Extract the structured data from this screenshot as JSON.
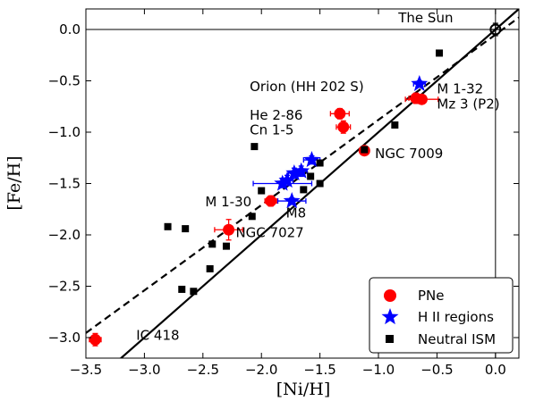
{
  "chart_data": {
    "type": "scatter",
    "xlabel": "[Ni/H]",
    "ylabel": "[Fe/H]",
    "xlim": [
      -3.5,
      0.2
    ],
    "ylim": [
      -3.2,
      0.2
    ],
    "xticks": [
      -3.5,
      -3.0,
      -2.5,
      -2.0,
      -1.5,
      -1.0,
      -0.5,
      0.0
    ],
    "yticks": [
      -3.0,
      -2.5,
      -2.0,
      -1.5,
      -1.0,
      -0.5,
      0.0
    ],
    "xtick_labels": [
      "−3.5",
      "−3.0",
      "−2.5",
      "−2.0",
      "−1.5",
      "−1.0",
      "−0.5",
      "0.0"
    ],
    "ytick_labels": [
      "−3.0",
      "−2.5",
      "−2.0",
      "−1.5",
      "−1.0",
      "−0.5",
      "0.0"
    ],
    "reference_lines": [
      {
        "style": "solid",
        "slope": 1.0,
        "intercept": 0.0
      },
      {
        "style": "dashed",
        "slope": 0.83,
        "intercept": -0.05
      },
      {
        "style": "solid-thin",
        "orientation": "horizontal",
        "value": 0.0
      },
      {
        "style": "solid-thin",
        "orientation": "vertical",
        "value": 0.0
      }
    ],
    "series": [
      {
        "name": "PNe",
        "marker": "circle",
        "color": "#ff0000",
        "points": [
          {
            "x": -3.42,
            "y": -3.02,
            "xerr": 0.05,
            "yerr": 0.06
          },
          {
            "x": -2.28,
            "y": -1.95,
            "xerr": 0.12,
            "yerr": 0.1
          },
          {
            "x": -1.92,
            "y": -1.67,
            "xerr": 0.05,
            "yerr": 0.05
          },
          {
            "x": -1.33,
            "y": -0.82,
            "xerr": 0.08,
            "yerr": 0.05
          },
          {
            "x": -1.3,
            "y": -0.95,
            "xerr": 0.06,
            "yerr": 0.06
          },
          {
            "x": -1.12,
            "y": -1.18,
            "xerr": 0.04,
            "yerr": 0.03
          },
          {
            "x": -0.68,
            "y": -0.67,
            "xerr": 0.06,
            "yerr": 0.05
          },
          {
            "x": -0.63,
            "y": -0.68,
            "xerr": 0.14,
            "yerr": 0.04
          }
        ]
      },
      {
        "name": "H II regions",
        "marker": "star",
        "color": "#0000ff",
        "points": [
          {
            "x": -1.82,
            "y": -1.5,
            "xerr": 0.25,
            "yerr": 0.04
          },
          {
            "x": -1.78,
            "y": -1.47,
            "xerr": 0.05,
            "yerr": 0.05
          },
          {
            "x": -1.72,
            "y": -1.4,
            "xerr": 0.05,
            "yerr": 0.05
          },
          {
            "x": -1.66,
            "y": -1.38,
            "xerr": 0.05,
            "yerr": 0.05
          },
          {
            "x": -1.57,
            "y": -1.27,
            "xerr": 0.07,
            "yerr": 0.04
          },
          {
            "x": -1.74,
            "y": -1.67,
            "xerr": 0.12,
            "yerr": 0.03
          },
          {
            "x": -0.65,
            "y": -0.53,
            "xerr": 0.05,
            "yerr": 0.03
          }
        ]
      },
      {
        "name": "Neutral ISM",
        "marker": "square",
        "color": "#000000",
        "points": [
          {
            "x": -2.8,
            "y": -1.92
          },
          {
            "x": -2.65,
            "y": -1.94
          },
          {
            "x": -2.68,
            "y": -2.53
          },
          {
            "x": -2.58,
            "y": -2.55
          },
          {
            "x": -2.42,
            "y": -2.09
          },
          {
            "x": -2.44,
            "y": -2.33
          },
          {
            "x": -2.3,
            "y": -2.11
          },
          {
            "x": -2.06,
            "y": -1.14
          },
          {
            "x": -2.08,
            "y": -1.82
          },
          {
            "x": -2.0,
            "y": -1.57
          },
          {
            "x": -1.64,
            "y": -1.56
          },
          {
            "x": -1.58,
            "y": -1.43
          },
          {
            "x": -1.5,
            "y": -1.3
          },
          {
            "x": -1.5,
            "y": -1.5
          },
          {
            "x": -1.12,
            "y": -1.17
          },
          {
            "x": -0.86,
            "y": -0.93
          },
          {
            "x": -0.48,
            "y": -0.23
          }
        ]
      },
      {
        "name": "The Sun",
        "marker": "circle-open",
        "color": "#000000",
        "points": [
          {
            "x": 0.0,
            "y": 0.0,
            "xerr": 0.04,
            "yerr": 0.06
          }
        ]
      }
    ],
    "annotations": [
      {
        "text": "The Sun",
        "x": -0.83,
        "y": 0.07
      },
      {
        "text": "Orion (HH 202 S)",
        "x": -2.1,
        "y": -0.6
      },
      {
        "text": "M 1-32",
        "x": -0.5,
        "y": -0.62
      },
      {
        "text": "Mz 3 (P2)",
        "x": -0.5,
        "y": -0.77
      },
      {
        "text": "He 2-86",
        "x": -2.1,
        "y": -0.88
      },
      {
        "text": "Cn 1-5",
        "x": -2.1,
        "y": -1.02
      },
      {
        "text": "NGC 7009",
        "x": -1.03,
        "y": -1.25
      },
      {
        "text": "M 1-30",
        "x": -2.48,
        "y": -1.72
      },
      {
        "text": "M8",
        "x": -1.79,
        "y": -1.83
      },
      {
        "text": "NGC 7027",
        "x": -2.22,
        "y": -2.02
      },
      {
        "text": "IC 418",
        "x": -3.07,
        "y": -3.02
      }
    ],
    "legend": {
      "position": "lower-right",
      "entries": [
        "PNe",
        "H II regions",
        "Neutral ISM"
      ]
    }
  }
}
